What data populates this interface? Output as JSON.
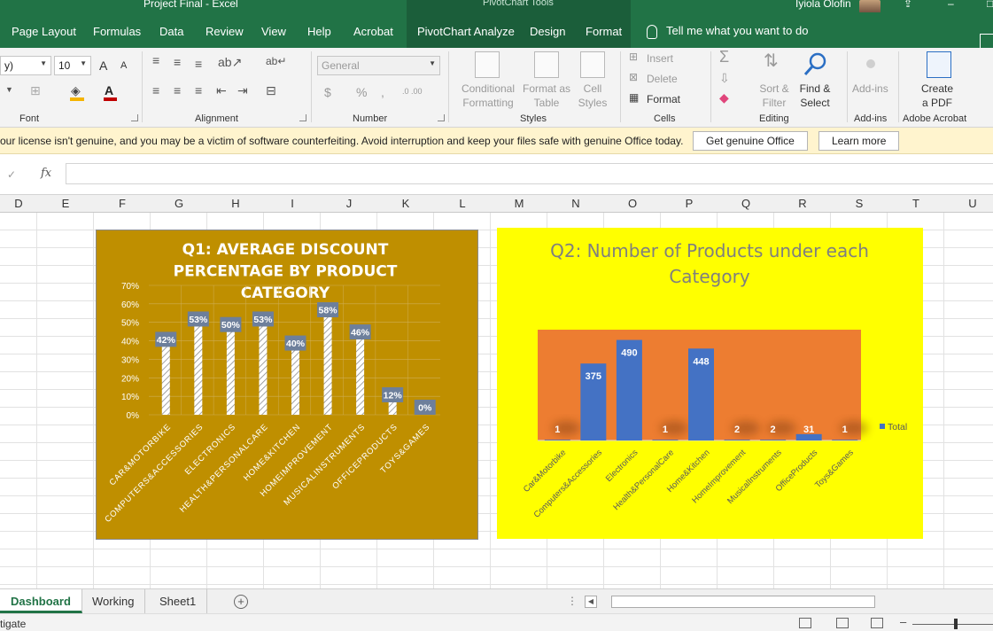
{
  "window": {
    "title": "Project Final  -  Excel",
    "context_tools": "PivotChart Tools",
    "user": "Iyiola Olofin"
  },
  "tabs": [
    "Page Layout",
    "Formulas",
    "Data",
    "Review",
    "View",
    "Help",
    "Acrobat",
    "PivotChart Analyze",
    "Design",
    "Format"
  ],
  "tell_me": "Tell me what you want to do",
  "ribbon": {
    "font_name": "y)",
    "font_size": "10",
    "grow_font": "A",
    "shrink_font": "A",
    "number_format": "General",
    "groups": {
      "font": "Font",
      "alignment": "Alignment",
      "number": "Number",
      "styles": "Styles",
      "cells": "Cells",
      "editing": "Editing",
      "addins": "Add-ins",
      "acrobat": "Adobe Acrobat"
    },
    "styles": {
      "conditional": [
        "Conditional",
        "Formatting"
      ],
      "format_table": [
        "Format as",
        "Table"
      ],
      "cell_styles": [
        "Cell",
        "Styles"
      ]
    },
    "cells": {
      "insert": "Insert",
      "delete": "Delete",
      "format": "Format"
    },
    "editing": {
      "sort": [
        "Sort &",
        "Filter"
      ],
      "find": [
        "Find &",
        "Select"
      ]
    },
    "addins_btn": "Add-ins",
    "create_pdf": [
      "Create",
      "a PDF"
    ],
    "currency": "$",
    "percent": "%",
    "comma": ",",
    "inc_dec": ".0 .00",
    "dec_dec": ".00 .0"
  },
  "message_bar": {
    "text": "our license isn't genuine, and you may be a victim of software counterfeiting. Avoid interruption and keep your files safe with genuine Office today.",
    "button_genuine": "Get genuine Office",
    "button_learn": "Learn more"
  },
  "formula_bar": {
    "check": "✓",
    "fx": "fx"
  },
  "columns": [
    "D",
    "E",
    "F",
    "G",
    "H",
    "I",
    "J",
    "K",
    "L",
    "M",
    "N",
    "O",
    "P",
    "Q",
    "R",
    "S",
    "T",
    "U"
  ],
  "sheets": [
    "Dashboard",
    "Working",
    "Sheet1"
  ],
  "active_sheet": "Dashboard",
  "status_text": "tigate",
  "chart_data": [
    {
      "type": "bar",
      "title_lines": [
        "Q1: AVERAGE DISCOUNT",
        "PERCENTAGE BY PRODUCT",
        "CATEGORY"
      ],
      "categories": [
        "CAR&MOTORBIKE",
        "COMPUTERS&ACCESSORIES",
        "ELECTRONICS",
        "HEALTH&PERSONALCARE",
        "HOME&KITCHEN",
        "HOMEIMPROVEMENT",
        "MUSICALINSTRUMENTS",
        "OFFICEPRODUCTS",
        "TOYS&GAMES"
      ],
      "values": [
        42,
        53,
        50,
        53,
        40,
        58,
        46,
        12,
        0
      ],
      "value_labels": [
        "42%",
        "53%",
        "50%",
        "53%",
        "40%",
        "58%",
        "46%",
        "12%",
        "0%"
      ],
      "ytick_labels": [
        "0%",
        "10%",
        "20%",
        "30%",
        "40%",
        "50%",
        "60%",
        "70%"
      ],
      "ylim": [
        0,
        70
      ],
      "grid": true,
      "colors": {
        "background": "#BF8F00",
        "bar_fill": "#ffffff",
        "bar_hatch": "#8c8c8c",
        "label_bg": "#6d7f9b",
        "text": "#ffffff",
        "grid": "#cfae55"
      }
    },
    {
      "type": "bar",
      "title_lines": [
        "Q2: Number of Products under each",
        "Category"
      ],
      "categories": [
        "Car&Motorbike",
        "Computers&Accessories",
        "Electronics",
        "Health&PersonalCare",
        "Home&Kitchen",
        "HomeImprovement",
        "MusicalInstruments",
        "OfficeProducts",
        "Toys&Games"
      ],
      "values": [
        1,
        375,
        490,
        1,
        448,
        2,
        2,
        31,
        1
      ],
      "value_labels": [
        "1",
        "375",
        "490",
        "1",
        "448",
        "2",
        "2",
        "31",
        "1"
      ],
      "series": [
        {
          "name": "Total",
          "values": [
            1,
            375,
            490,
            1,
            448,
            2,
            2,
            31,
            1
          ]
        }
      ],
      "ylim": [
        0,
        540
      ],
      "legend": "right",
      "grid": false,
      "colors": {
        "background": "#ffff00",
        "plot_area": "#ED7D31",
        "bar": "#4472C4",
        "title": "#7f7f7f",
        "label": "#ffffff",
        "axis_text": "#595959"
      }
    }
  ]
}
